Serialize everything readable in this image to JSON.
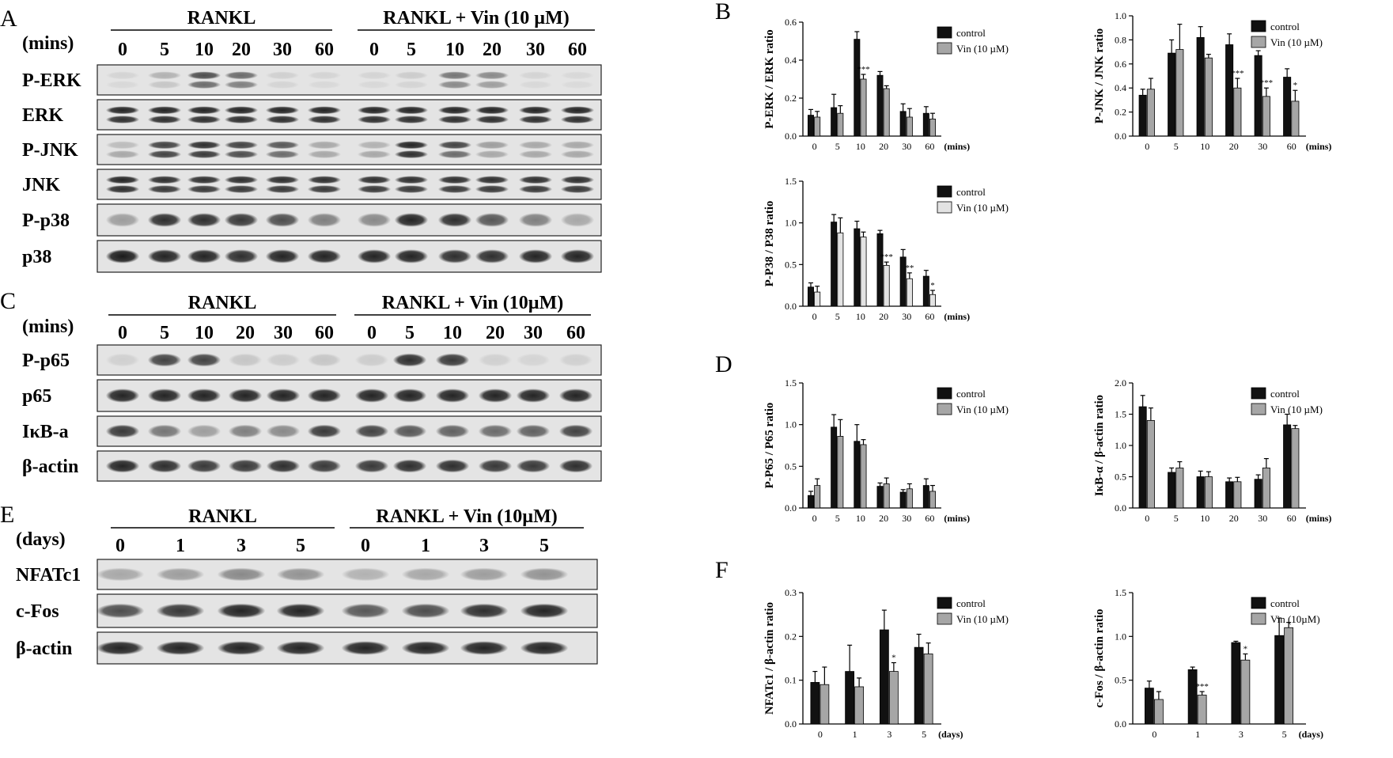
{
  "panel_letters": [
    "A",
    "B",
    "C",
    "D",
    "E",
    "F"
  ],
  "blot_A": {
    "group_left": "RANKL",
    "group_right": "RANKL + Vin (10 µM)",
    "time_label": "(mins)",
    "times": [
      "0",
      "5",
      "10",
      "20",
      "30",
      "60",
      "0",
      "5",
      "10",
      "20",
      "30",
      "60"
    ],
    "rows": [
      "P-ERK",
      "ERK",
      "P-JNK",
      "JNK",
      "P-p38",
      "p38"
    ]
  },
  "blot_C": {
    "group_left": "RANKL",
    "group_right": "RANKL + Vin (10µM)",
    "time_label": "(mins)",
    "times": [
      "0",
      "5",
      "10",
      "20",
      "30",
      "60",
      "0",
      "5",
      "10",
      "20",
      "30",
      "60"
    ],
    "rows": [
      "P-p65",
      "p65",
      "IκB-a",
      "β-actin"
    ]
  },
  "blot_E": {
    "group_left": "RANKL",
    "group_right": "RANKL + Vin (10µM)",
    "time_label": "(days)",
    "times": [
      "0",
      "1",
      "3",
      "5",
      "0",
      "1",
      "3",
      "5"
    ],
    "rows": [
      "NFATc1",
      "c-Fos",
      "β-actin"
    ]
  },
  "colors": {
    "control": "#111111",
    "vin_grey": "#a6a6a6",
    "vin_light": "#e3e3e3",
    "band": "#1a1a1a"
  },
  "chart_data": [
    {
      "type": "bar",
      "panel": "B",
      "ylabel": "P-ERK / ERK ratio",
      "xunit": "(mins)",
      "categories": [
        "0",
        "5",
        "10",
        "20",
        "30",
        "60"
      ],
      "ylim": [
        0,
        0.6
      ],
      "yticks": [
        "0.0",
        "0.2",
        "0.4",
        "0.6"
      ],
      "series": [
        {
          "name": "control",
          "values": [
            0.11,
            0.15,
            0.51,
            0.32,
            0.13,
            0.12
          ],
          "errors": [
            0.03,
            0.07,
            0.04,
            0.02,
            0.04,
            0.035
          ]
        },
        {
          "name": "Vin (10 µM)",
          "values": [
            0.1,
            0.12,
            0.3,
            0.25,
            0.1,
            0.09
          ],
          "errors": [
            0.03,
            0.04,
            0.025,
            0.015,
            0.045,
            0.03
          ]
        }
      ],
      "significance": [
        "",
        "",
        "***",
        "",
        "",
        ""
      ]
    },
    {
      "type": "bar",
      "panel": "B",
      "ylabel": "P-JNK / JNK ratio",
      "xunit": "(mins)",
      "categories": [
        "0",
        "5",
        "10",
        "20",
        "30",
        "60"
      ],
      "ylim": [
        0,
        1.0
      ],
      "yticks": [
        "0.0",
        "0.2",
        "0.4",
        "0.6",
        "0.8",
        "1.0"
      ],
      "series": [
        {
          "name": "control",
          "values": [
            0.34,
            0.69,
            0.82,
            0.76,
            0.67,
            0.49
          ],
          "errors": [
            0.05,
            0.11,
            0.09,
            0.09,
            0.04,
            0.07
          ]
        },
        {
          "name": "Vin (10 µM)",
          "values": [
            0.39,
            0.72,
            0.65,
            0.4,
            0.33,
            0.29
          ],
          "errors": [
            0.09,
            0.21,
            0.03,
            0.08,
            0.07,
            0.09
          ]
        }
      ],
      "significance": [
        "",
        "",
        "",
        "***",
        "***",
        "*"
      ]
    },
    {
      "type": "bar",
      "panel": "B",
      "ylabel": "P-P38 / P38 ratio",
      "xunit": "(mins)",
      "categories": [
        "0",
        "5",
        "10",
        "20",
        "30",
        "60"
      ],
      "ylim": [
        0,
        1.5
      ],
      "yticks": [
        "0.0",
        "0.5",
        "1.0",
        "1.5"
      ],
      "series": [
        {
          "name": "control",
          "values": [
            0.23,
            1.01,
            0.93,
            0.87,
            0.59,
            0.36
          ],
          "errors": [
            0.05,
            0.09,
            0.09,
            0.04,
            0.09,
            0.07
          ]
        },
        {
          "name": "Vin (10 µM)",
          "values": [
            0.17,
            0.88,
            0.83,
            0.49,
            0.33,
            0.14
          ],
          "errors": [
            0.07,
            0.18,
            0.06,
            0.04,
            0.07,
            0.05
          ]
        }
      ],
      "significance": [
        "",
        "",
        "",
        "***",
        "**",
        "*"
      ]
    },
    {
      "type": "bar",
      "panel": "D",
      "ylabel": "P-P65 / P65 ratio",
      "xunit": "(mins)",
      "categories": [
        "0",
        "5",
        "10",
        "20",
        "30",
        "60"
      ],
      "ylim": [
        0,
        1.5
      ],
      "yticks": [
        "0.0",
        "0.5",
        "1.0",
        "1.5"
      ],
      "series": [
        {
          "name": "control",
          "values": [
            0.15,
            0.97,
            0.8,
            0.26,
            0.19,
            0.27
          ],
          "errors": [
            0.05,
            0.15,
            0.2,
            0.04,
            0.03,
            0.08
          ]
        },
        {
          "name": "Vin (10 µM)",
          "values": [
            0.27,
            0.86,
            0.76,
            0.29,
            0.23,
            0.2
          ],
          "errors": [
            0.08,
            0.2,
            0.06,
            0.07,
            0.06,
            0.07
          ]
        }
      ],
      "significance": [
        "",
        "",
        "",
        "",
        "",
        ""
      ]
    },
    {
      "type": "bar",
      "panel": "D",
      "ylabel": "IκB-α / β-actin ratio",
      "xunit": "(mins)",
      "categories": [
        "0",
        "5",
        "10",
        "20",
        "30",
        "60"
      ],
      "ylim": [
        0,
        2.0
      ],
      "yticks": [
        "0.0",
        "0.5",
        "1.0",
        "1.5",
        "2.0"
      ],
      "series": [
        {
          "name": "control",
          "values": [
            1.62,
            0.57,
            0.5,
            0.42,
            0.46,
            1.33
          ],
          "errors": [
            0.18,
            0.07,
            0.09,
            0.06,
            0.07,
            0.17
          ]
        },
        {
          "name": "Vin (10 µM)",
          "values": [
            1.4,
            0.64,
            0.5,
            0.42,
            0.64,
            1.27
          ],
          "errors": [
            0.2,
            0.1,
            0.08,
            0.07,
            0.15,
            0.05
          ]
        }
      ],
      "significance": [
        "",
        "",
        "",
        "",
        "",
        ""
      ]
    },
    {
      "type": "bar",
      "panel": "F",
      "ylabel": "NFATc1 / β-actin ratio",
      "xunit": "(days)",
      "categories": [
        "0",
        "1",
        "3",
        "5"
      ],
      "ylim": [
        0,
        0.3
      ],
      "yticks": [
        "0.0",
        "0.1",
        "0.2",
        "0.3"
      ],
      "series": [
        {
          "name": "control",
          "values": [
            0.095,
            0.12,
            0.215,
            0.175
          ],
          "errors": [
            0.025,
            0.06,
            0.045,
            0.03
          ]
        },
        {
          "name": "Vin (10 µM)",
          "values": [
            0.09,
            0.085,
            0.12,
            0.16
          ],
          "errors": [
            0.04,
            0.02,
            0.02,
            0.025
          ]
        }
      ],
      "significance": [
        "",
        "",
        "*",
        ""
      ]
    },
    {
      "type": "bar",
      "panel": "F",
      "ylabel": "c-Fos / β-actin ratio",
      "xunit": "(days)",
      "categories": [
        "0",
        "1",
        "3",
        "5"
      ],
      "ylim": [
        0,
        1.5
      ],
      "yticks": [
        "0.0",
        "0.5",
        "1.0",
        "1.5"
      ],
      "series": [
        {
          "name": "control",
          "values": [
            0.41,
            0.62,
            0.93,
            1.01
          ],
          "errors": [
            0.08,
            0.03,
            0.015,
            0.2
          ]
        },
        {
          "name": "Vin (10µM)",
          "values": [
            0.28,
            0.33,
            0.73,
            1.1
          ],
          "errors": [
            0.09,
            0.04,
            0.07,
            0.06
          ]
        }
      ],
      "significance": [
        "",
        "***",
        "*",
        ""
      ]
    }
  ]
}
